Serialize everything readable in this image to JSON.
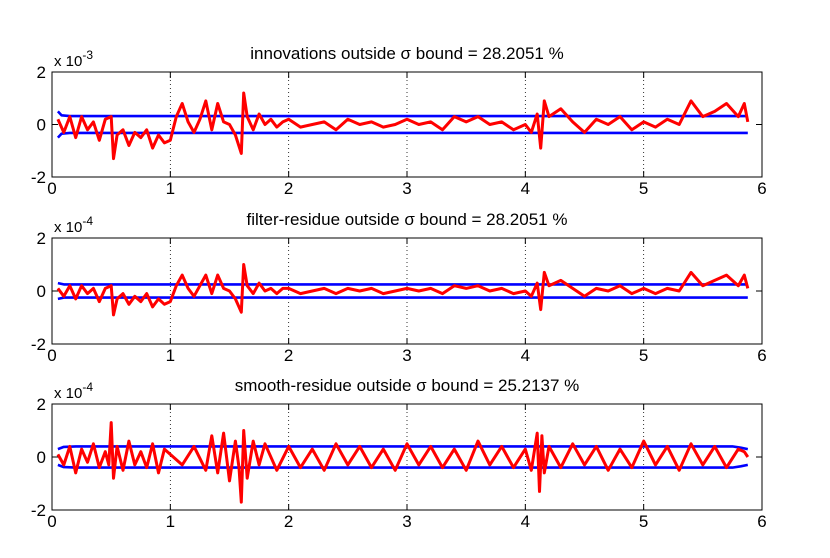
{
  "chart_data": [
    {
      "type": "line",
      "title": "innovations outside σ bound = 28.2051 %",
      "exponent": "x 10",
      "exponent_power": "-3",
      "xlim": [
        0,
        6
      ],
      "ylim": [
        -2,
        2
      ],
      "xticks": [
        "0",
        "1",
        "2",
        "3",
        "4",
        "5",
        "6"
      ],
      "yticks": [
        "2",
        "0",
        "-2"
      ],
      "x_grid": "dotted",
      "series": [
        {
          "role": "upper-bound",
          "color": "#0000ff",
          "x": [
            0.05,
            0.08,
            0.15,
            0.5,
            1.0,
            2.0,
            3.0,
            4.0,
            5.0,
            5.88
          ],
          "y": [
            0.5,
            0.35,
            0.32,
            0.32,
            0.32,
            0.32,
            0.32,
            0.32,
            0.32,
            0.32
          ]
        },
        {
          "role": "lower-bound",
          "color": "#0000ff",
          "x": [
            0.05,
            0.08,
            0.15,
            0.5,
            1.0,
            2.0,
            3.0,
            4.0,
            5.0,
            5.88
          ],
          "y": [
            -0.5,
            -0.35,
            -0.32,
            -0.32,
            -0.32,
            -0.32,
            -0.32,
            -0.32,
            -0.32,
            -0.32
          ]
        },
        {
          "role": "residual",
          "color": "#ff0000",
          "x": [
            0.05,
            0.1,
            0.15,
            0.2,
            0.25,
            0.3,
            0.35,
            0.4,
            0.45,
            0.5,
            0.52,
            0.55,
            0.6,
            0.65,
            0.7,
            0.75,
            0.8,
            0.85,
            0.9,
            0.95,
            1.0,
            1.05,
            1.1,
            1.15,
            1.2,
            1.25,
            1.3,
            1.35,
            1.4,
            1.45,
            1.5,
            1.55,
            1.6,
            1.62,
            1.65,
            1.7,
            1.75,
            1.8,
            1.85,
            1.9,
            1.95,
            2.0,
            2.1,
            2.2,
            2.3,
            2.4,
            2.5,
            2.6,
            2.7,
            2.8,
            2.9,
            3.0,
            3.1,
            3.2,
            3.3,
            3.4,
            3.5,
            3.6,
            3.7,
            3.8,
            3.9,
            4.0,
            4.05,
            4.1,
            4.13,
            4.16,
            4.2,
            4.3,
            4.4,
            4.5,
            4.6,
            4.7,
            4.8,
            4.9,
            5.0,
            5.1,
            5.2,
            5.3,
            5.4,
            5.5,
            5.6,
            5.7,
            5.8,
            5.85,
            5.88
          ],
          "y": [
            0.2,
            -0.3,
            0.3,
            -0.5,
            0.3,
            -0.2,
            0.1,
            -0.6,
            0.2,
            0.3,
            -1.3,
            -0.4,
            -0.2,
            -0.8,
            -0.3,
            -0.5,
            -0.2,
            -0.9,
            -0.4,
            -0.7,
            -0.6,
            0.3,
            0.8,
            0.1,
            -0.3,
            0.2,
            0.9,
            -0.2,
            0.8,
            0.1,
            0.0,
            -0.4,
            -1.1,
            1.2,
            0.3,
            -0.2,
            0.4,
            0.0,
            0.2,
            -0.1,
            0.1,
            0.2,
            -0.1,
            0.0,
            0.1,
            -0.2,
            0.2,
            0.0,
            0.1,
            -0.1,
            0.0,
            0.2,
            0.0,
            0.1,
            -0.2,
            0.3,
            0.1,
            0.3,
            0.0,
            0.1,
            -0.2,
            0.0,
            -0.3,
            0.4,
            -0.9,
            0.9,
            0.3,
            0.6,
            0.1,
            -0.3,
            0.2,
            0.0,
            0.3,
            -0.2,
            0.1,
            -0.1,
            0.2,
            0.0,
            0.9,
            0.3,
            0.5,
            0.8,
            0.3,
            0.8,
            0.1
          ]
        }
      ]
    },
    {
      "type": "line",
      "title": "filter-residue outside σ bound = 28.2051 %",
      "exponent": "x 10",
      "exponent_power": "-4",
      "xlim": [
        0,
        6
      ],
      "ylim": [
        -2,
        2
      ],
      "xticks": [
        "0",
        "1",
        "2",
        "3",
        "4",
        "5",
        "6"
      ],
      "yticks": [
        "2",
        "0",
        "-2"
      ],
      "x_grid": "dotted",
      "series": [
        {
          "role": "upper-bound",
          "color": "#0000ff",
          "x": [
            0.05,
            0.1,
            0.2,
            1.0,
            2.0,
            3.0,
            4.0,
            5.0,
            5.88
          ],
          "y": [
            0.3,
            0.25,
            0.25,
            0.25,
            0.25,
            0.25,
            0.25,
            0.25,
            0.25
          ]
        },
        {
          "role": "lower-bound",
          "color": "#0000ff",
          "x": [
            0.05,
            0.1,
            0.2,
            1.0,
            2.0,
            3.0,
            4.0,
            5.0,
            5.88
          ],
          "y": [
            -0.3,
            -0.25,
            -0.25,
            -0.25,
            -0.25,
            -0.25,
            -0.25,
            -0.25,
            -0.25
          ]
        },
        {
          "role": "residual",
          "color": "#ff0000",
          "x": [
            0.05,
            0.1,
            0.15,
            0.2,
            0.25,
            0.3,
            0.35,
            0.4,
            0.45,
            0.5,
            0.52,
            0.55,
            0.6,
            0.65,
            0.7,
            0.75,
            0.8,
            0.85,
            0.9,
            0.95,
            1.0,
            1.05,
            1.1,
            1.15,
            1.2,
            1.25,
            1.3,
            1.35,
            1.4,
            1.45,
            1.5,
            1.55,
            1.6,
            1.62,
            1.65,
            1.7,
            1.75,
            1.8,
            1.85,
            1.9,
            1.95,
            2.0,
            2.1,
            2.2,
            2.3,
            2.4,
            2.5,
            2.6,
            2.7,
            2.8,
            2.9,
            3.0,
            3.1,
            3.2,
            3.3,
            3.4,
            3.5,
            3.6,
            3.7,
            3.8,
            3.9,
            4.0,
            4.05,
            4.1,
            4.13,
            4.16,
            4.2,
            4.3,
            4.4,
            4.5,
            4.6,
            4.7,
            4.8,
            4.9,
            5.0,
            5.1,
            5.2,
            5.3,
            5.4,
            5.5,
            5.6,
            5.7,
            5.8,
            5.85,
            5.88
          ],
          "y": [
            0.1,
            -0.2,
            0.2,
            -0.3,
            0.2,
            -0.1,
            0.1,
            -0.4,
            0.1,
            0.2,
            -0.9,
            -0.3,
            -0.1,
            -0.5,
            -0.2,
            -0.4,
            -0.1,
            -0.6,
            -0.3,
            -0.5,
            -0.4,
            0.2,
            0.6,
            0.1,
            -0.2,
            0.2,
            0.6,
            -0.1,
            0.6,
            0.1,
            0.0,
            -0.3,
            -0.8,
            1.0,
            0.2,
            -0.1,
            0.3,
            0.0,
            0.1,
            -0.1,
            0.1,
            0.1,
            -0.1,
            0.0,
            0.1,
            -0.1,
            0.1,
            0.0,
            0.1,
            -0.1,
            0.0,
            0.1,
            0.0,
            0.1,
            -0.1,
            0.2,
            0.1,
            0.2,
            0.0,
            0.1,
            -0.1,
            0.0,
            -0.2,
            0.3,
            -0.7,
            0.7,
            0.2,
            0.4,
            0.1,
            -0.2,
            0.1,
            0.0,
            0.2,
            -0.1,
            0.1,
            -0.1,
            0.1,
            0.0,
            0.7,
            0.2,
            0.4,
            0.6,
            0.2,
            0.6,
            0.1
          ]
        }
      ]
    },
    {
      "type": "line",
      "title": "smooth-residue outside σ bound = 25.2137 %",
      "exponent": "x 10",
      "exponent_power": "-4",
      "xlim": [
        0,
        6
      ],
      "ylim": [
        -2,
        2
      ],
      "xticks": [
        "0",
        "1",
        "2",
        "3",
        "4",
        "5",
        "6"
      ],
      "yticks": [
        "2",
        "0",
        "-2"
      ],
      "x_grid": "dotted",
      "series": [
        {
          "role": "upper-bound",
          "color": "#0000ff",
          "x": [
            0.05,
            0.1,
            0.2,
            1.0,
            2.0,
            3.0,
            4.0,
            5.0,
            5.75,
            5.82,
            5.88
          ],
          "y": [
            0.3,
            0.38,
            0.4,
            0.4,
            0.4,
            0.4,
            0.4,
            0.4,
            0.4,
            0.35,
            0.3
          ]
        },
        {
          "role": "lower-bound",
          "color": "#0000ff",
          "x": [
            0.05,
            0.1,
            0.2,
            1.0,
            2.0,
            3.0,
            4.0,
            5.0,
            5.75,
            5.82,
            5.88
          ],
          "y": [
            -0.3,
            -0.38,
            -0.4,
            -0.4,
            -0.4,
            -0.4,
            -0.4,
            -0.4,
            -0.4,
            -0.35,
            -0.3
          ]
        },
        {
          "role": "residual",
          "color": "#ff0000",
          "x": [
            0.05,
            0.1,
            0.15,
            0.2,
            0.25,
            0.3,
            0.35,
            0.4,
            0.45,
            0.48,
            0.5,
            0.52,
            0.55,
            0.6,
            0.65,
            0.7,
            0.75,
            0.8,
            0.85,
            0.9,
            0.95,
            1.0,
            1.1,
            1.2,
            1.3,
            1.35,
            1.4,
            1.45,
            1.5,
            1.55,
            1.58,
            1.6,
            1.62,
            1.65,
            1.7,
            1.75,
            1.8,
            1.9,
            2.0,
            2.1,
            2.2,
            2.3,
            2.4,
            2.5,
            2.6,
            2.7,
            2.8,
            2.9,
            3.0,
            3.1,
            3.2,
            3.3,
            3.4,
            3.5,
            3.6,
            3.7,
            3.8,
            3.9,
            4.0,
            4.05,
            4.1,
            4.12,
            4.14,
            4.16,
            4.2,
            4.3,
            4.4,
            4.5,
            4.6,
            4.7,
            4.8,
            4.9,
            5.0,
            5.1,
            5.2,
            5.3,
            5.4,
            5.5,
            5.6,
            5.7,
            5.8,
            5.85,
            5.88
          ],
          "y": [
            0.1,
            -0.3,
            0.4,
            -0.6,
            0.3,
            -0.2,
            0.5,
            -0.4,
            0.2,
            -0.3,
            1.3,
            -0.8,
            0.4,
            -0.5,
            0.6,
            -0.3,
            0.2,
            -0.4,
            0.5,
            -0.6,
            0.3,
            0.1,
            -0.3,
            0.4,
            -0.5,
            0.8,
            -0.6,
            0.9,
            -0.9,
            0.6,
            -0.4,
            -1.7,
            1.0,
            -0.8,
            0.6,
            -0.3,
            0.5,
            -0.5,
            0.4,
            -0.4,
            0.3,
            -0.5,
            0.5,
            -0.3,
            0.4,
            -0.4,
            0.3,
            -0.5,
            0.5,
            -0.3,
            0.4,
            -0.4,
            0.3,
            -0.5,
            0.6,
            -0.3,
            0.4,
            -0.4,
            0.3,
            -0.5,
            0.9,
            -1.3,
            0.8,
            -0.6,
            0.4,
            -0.4,
            0.5,
            -0.3,
            0.4,
            -0.5,
            0.3,
            -0.4,
            0.6,
            -0.3,
            0.4,
            -0.5,
            0.5,
            -0.3,
            0.4,
            -0.4,
            0.3,
            0.2,
            0.0
          ]
        }
      ]
    }
  ]
}
